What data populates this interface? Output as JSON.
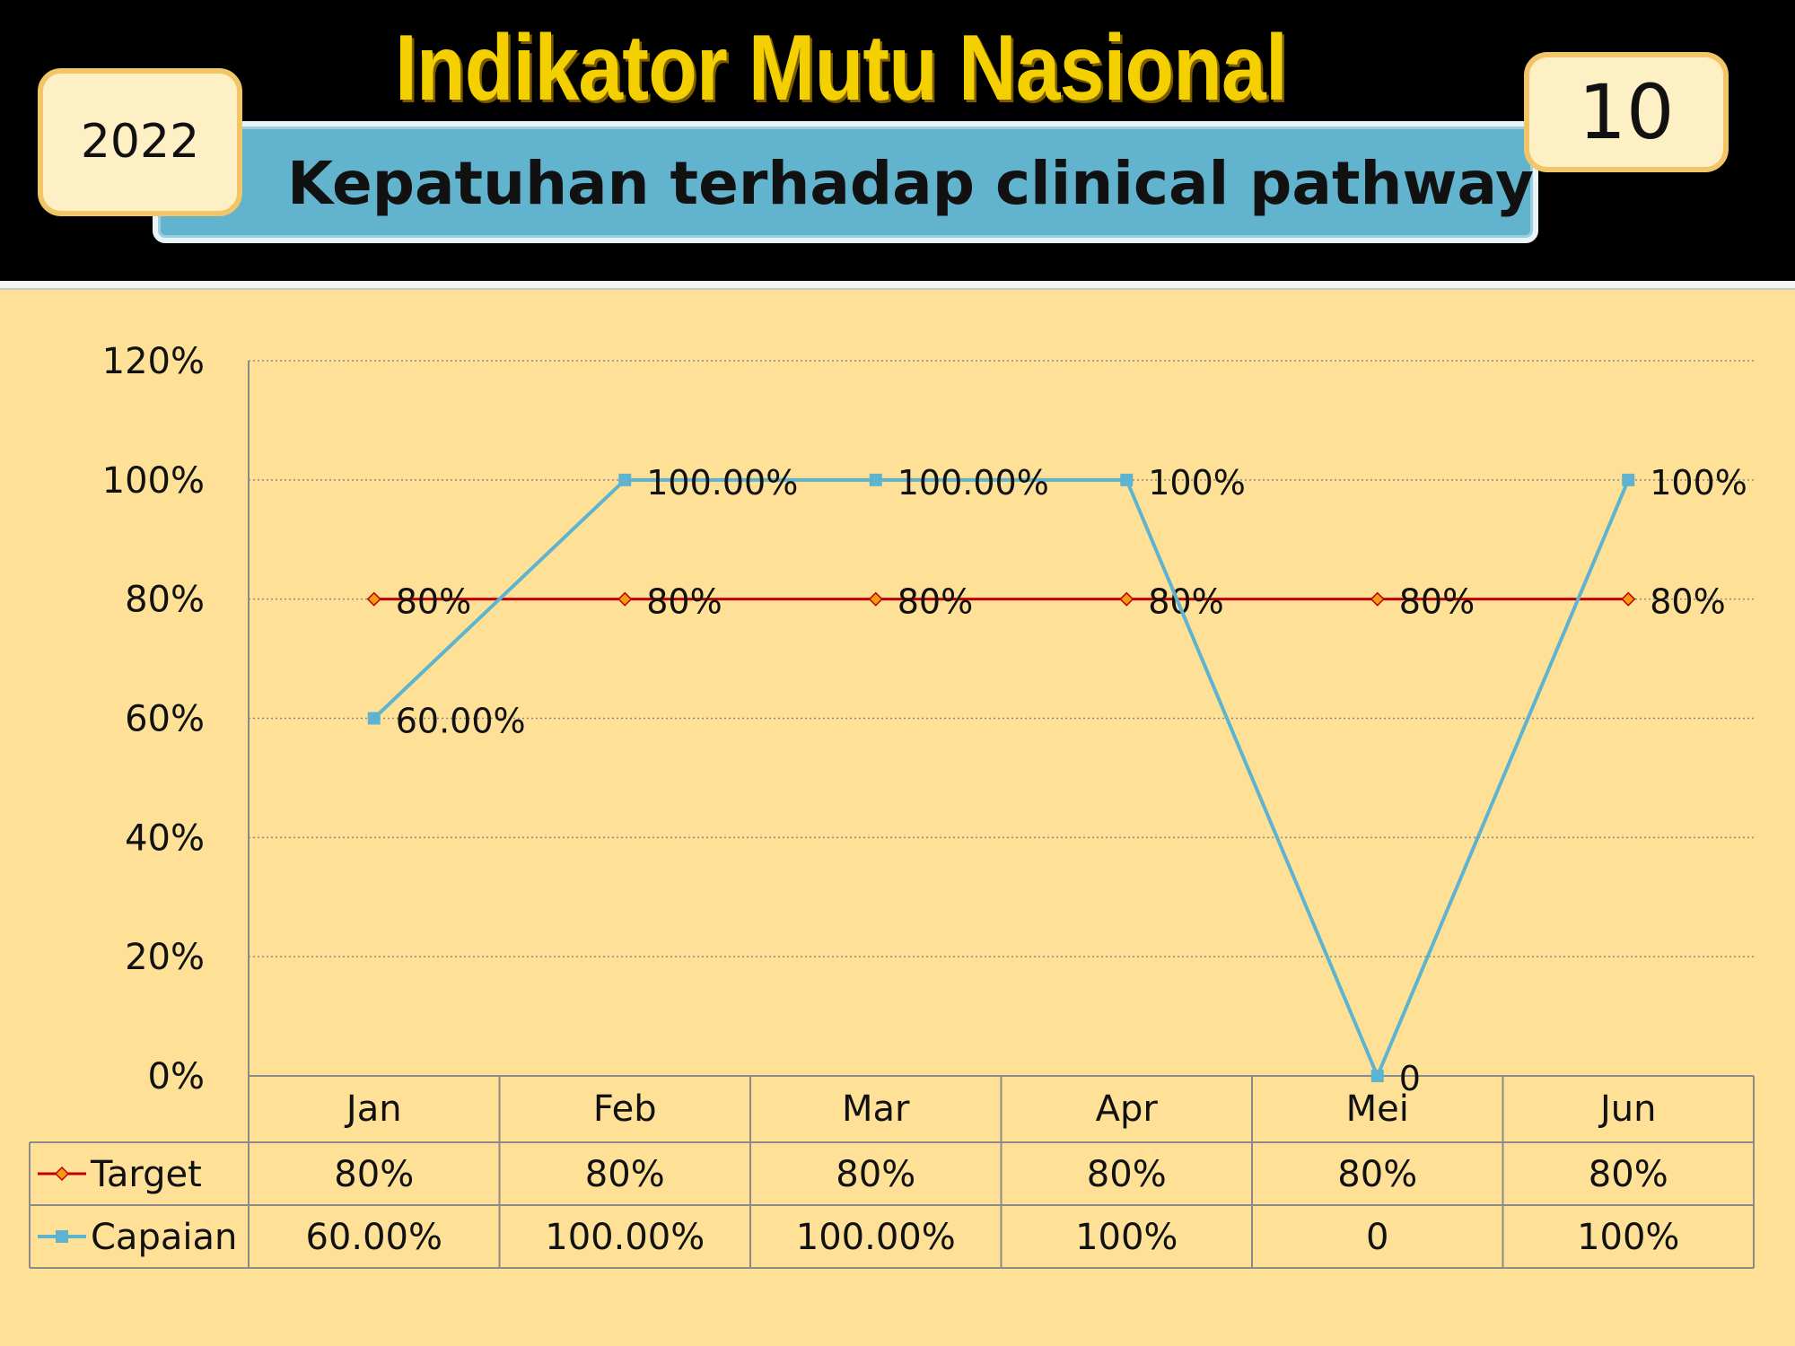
{
  "header": {
    "title": "Indikator Mutu Nasional",
    "subtitle": "Kepatuhan terhadap clinical pathway",
    "year": "2022",
    "indicator_number": "10"
  },
  "colors": {
    "background": "#fee196",
    "header": "#000000",
    "title": "#f5d000",
    "subtitle_box": "#62b4ce",
    "target_line": "#c00000",
    "target_marker": "#f39c12",
    "capaian_line": "#5eb3cf"
  },
  "chart_data": {
    "type": "line",
    "categories": [
      "Jan",
      "Feb",
      "Mar",
      "Apr",
      "Mei",
      "Jun"
    ],
    "y_ticks": [
      "0%",
      "20%",
      "40%",
      "60%",
      "80%",
      "100%",
      "120%"
    ],
    "ylim": [
      0,
      1.2
    ],
    "grid": true,
    "legend": "data-table",
    "series": [
      {
        "name": "Target",
        "values": [
          0.8,
          0.8,
          0.8,
          0.8,
          0.8,
          0.8
        ],
        "labels": [
          "80%",
          "80%",
          "80%",
          "80%",
          "80%",
          "80%"
        ],
        "marker": "diamond"
      },
      {
        "name": "Capaian",
        "values": [
          0.6,
          1.0,
          1.0,
          1.0,
          0,
          1.0
        ],
        "labels": [
          "60.00%",
          "100.00%",
          "100.00%",
          "100%",
          "0",
          "100%"
        ],
        "marker": "square"
      }
    ]
  }
}
